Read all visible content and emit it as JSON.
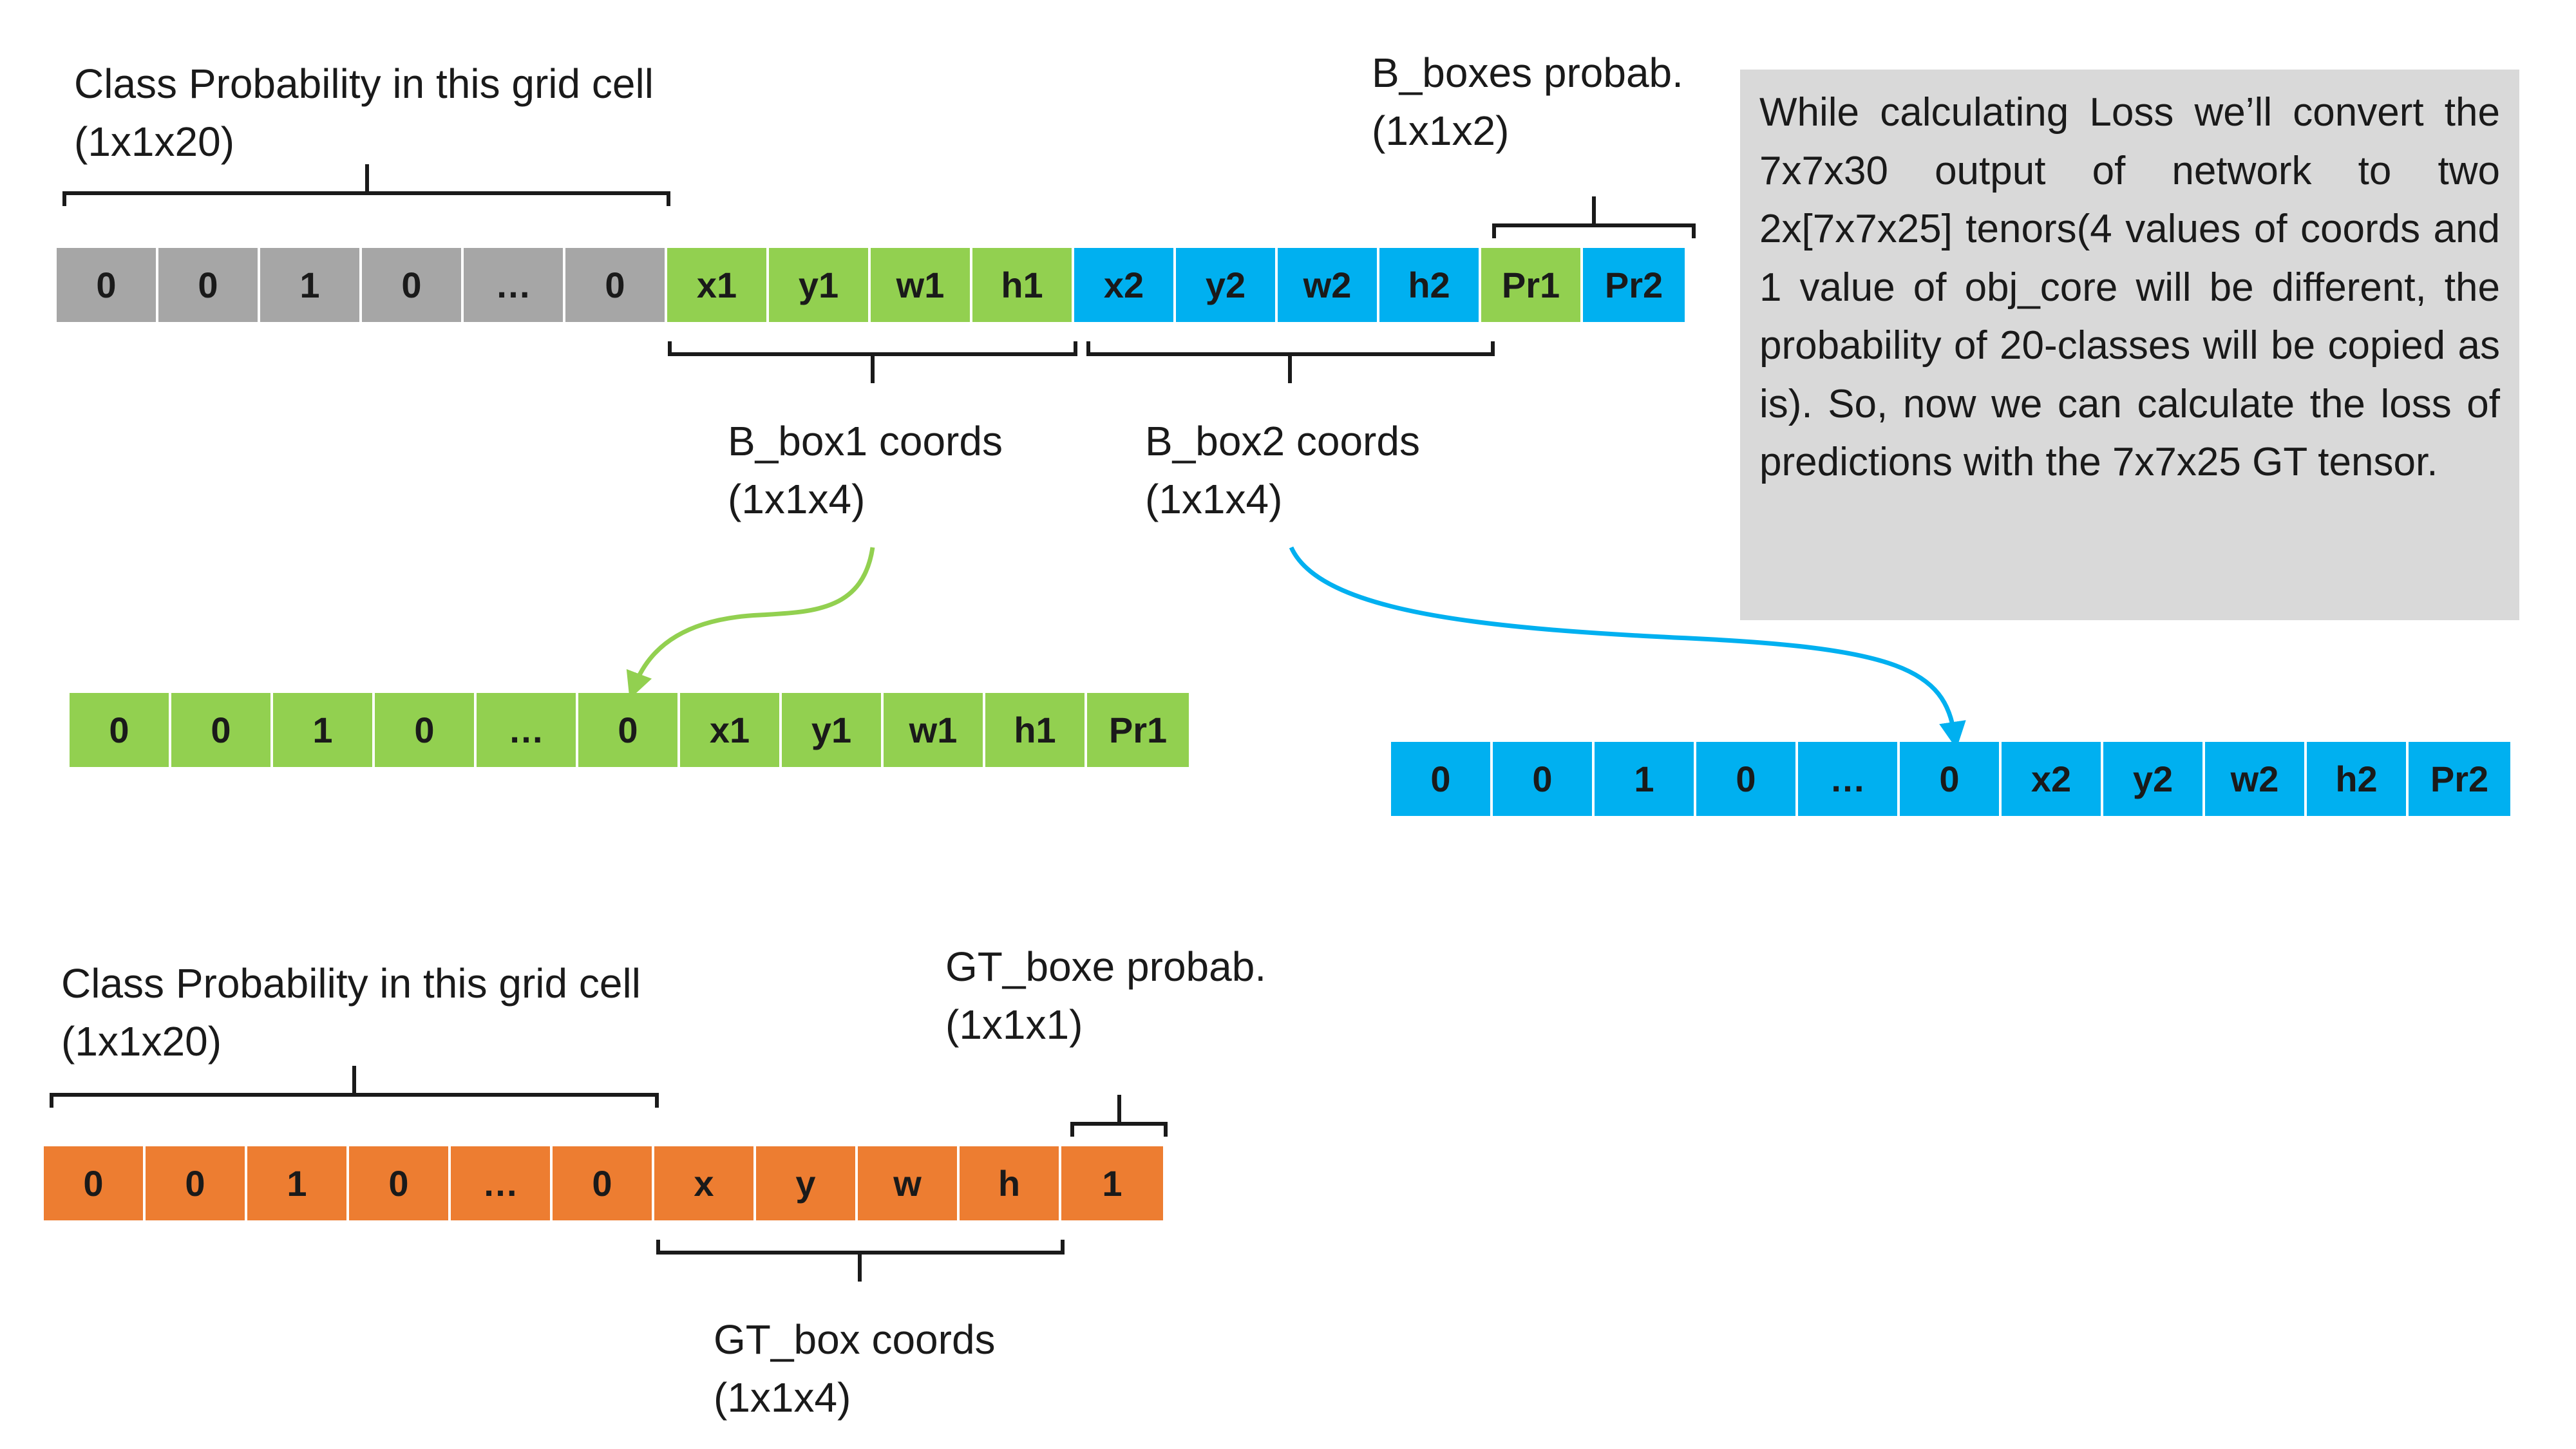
{
  "top_section": {
    "class_prob_label": {
      "line1": "Class Probability in this grid cell",
      "line2": "(1x1x20)"
    },
    "boxes_prob_label": {
      "line1": "B_boxes probab.",
      "line2": "(1x1x2)"
    },
    "box1_label": {
      "line1": "B_box1 coords",
      "line2": "(1x1x4)"
    },
    "box2_label": {
      "line1": "B_box2 coords",
      "line2": "(1x1x4)"
    },
    "cells": [
      {
        "text": "0",
        "color": "gray"
      },
      {
        "text": "0",
        "color": "gray"
      },
      {
        "text": "1",
        "color": "gray"
      },
      {
        "text": "0",
        "color": "gray"
      },
      {
        "text": "…",
        "color": "gray"
      },
      {
        "text": "0",
        "color": "gray"
      },
      {
        "text": "x1",
        "color": "green"
      },
      {
        "text": "y1",
        "color": "green"
      },
      {
        "text": "w1",
        "color": "green"
      },
      {
        "text": "h1",
        "color": "green"
      },
      {
        "text": "x2",
        "color": "blue"
      },
      {
        "text": "y2",
        "color": "blue"
      },
      {
        "text": "w2",
        "color": "blue"
      },
      {
        "text": "h2",
        "color": "blue"
      },
      {
        "text": "Pr1",
        "color": "green"
      },
      {
        "text": "Pr2",
        "color": "blue"
      }
    ]
  },
  "note": "While calculating Loss we’ll convert the 7x7x30 output of network to two 2x[7x7x25] tenors(4 values of coords and 1 value of obj_core will be different, the probability of 20-classes will be copied as is). So, now we can calculate the loss of predictions with the 7x7x25 GT tensor.",
  "pred1_cells": [
    {
      "text": "0",
      "color": "green"
    },
    {
      "text": "0",
      "color": "green"
    },
    {
      "text": "1",
      "color": "green"
    },
    {
      "text": "0",
      "color": "green"
    },
    {
      "text": "…",
      "color": "green"
    },
    {
      "text": "0",
      "color": "green"
    },
    {
      "text": "x1",
      "color": "green"
    },
    {
      "text": "y1",
      "color": "green"
    },
    {
      "text": "w1",
      "color": "green"
    },
    {
      "text": "h1",
      "color": "green"
    },
    {
      "text": "Pr1",
      "color": "green"
    }
  ],
  "pred2_cells": [
    {
      "text": "0",
      "color": "blue"
    },
    {
      "text": "0",
      "color": "blue"
    },
    {
      "text": "1",
      "color": "blue"
    },
    {
      "text": "0",
      "color": "blue"
    },
    {
      "text": "…",
      "color": "blue"
    },
    {
      "text": "0",
      "color": "blue"
    },
    {
      "text": "x2",
      "color": "blue"
    },
    {
      "text": "y2",
      "color": "blue"
    },
    {
      "text": "w2",
      "color": "blue"
    },
    {
      "text": "h2",
      "color": "blue"
    },
    {
      "text": "Pr2",
      "color": "blue"
    }
  ],
  "gt_section": {
    "class_prob_label": {
      "line1": "Class Probability in this grid cell",
      "line2": "(1x1x20)"
    },
    "boxe_prob_label": {
      "line1": "GT_boxe probab.",
      "line2": "(1x1x1)"
    },
    "coords_label": {
      "line1": "GT_box coords",
      "line2": "(1x1x4)"
    },
    "cells": [
      {
        "text": "0",
        "color": "orange"
      },
      {
        "text": "0",
        "color": "orange"
      },
      {
        "text": "1",
        "color": "orange"
      },
      {
        "text": "0",
        "color": "orange"
      },
      {
        "text": "…",
        "color": "orange"
      },
      {
        "text": "0",
        "color": "orange"
      },
      {
        "text": "x",
        "color": "orange"
      },
      {
        "text": "y",
        "color": "orange"
      },
      {
        "text": "w",
        "color": "orange"
      },
      {
        "text": "h",
        "color": "orange"
      },
      {
        "text": "1",
        "color": "orange"
      }
    ]
  },
  "colors": {
    "gray": "#a6a6a6",
    "green": "#92d050",
    "blue": "#00b0f0",
    "orange": "#ed7d31",
    "note_bg": "#d9d9d9"
  }
}
